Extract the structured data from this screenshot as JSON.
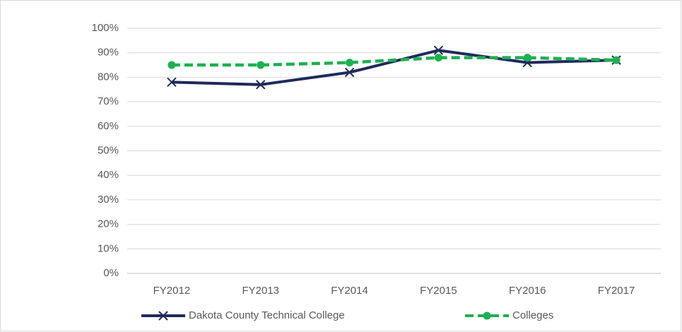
{
  "chart_data": {
    "type": "line",
    "categories": [
      "FY2012",
      "FY2013",
      "FY2014",
      "FY2015",
      "FY2016",
      "FY2017"
    ],
    "series": [
      {
        "name": "Dakota County Technical College",
        "color": "#1f2a5c",
        "values": [
          78,
          77,
          82,
          91,
          86,
          87
        ]
      },
      {
        "name": "Colleges",
        "color": "#1db050",
        "values": [
          85,
          85,
          86,
          88,
          88,
          87
        ]
      }
    ],
    "ylim": [
      0,
      100
    ],
    "yticks": [
      {
        "value": 0,
        "label": "0%"
      },
      {
        "value": 10,
        "label": "10%"
      },
      {
        "value": 20,
        "label": "20%"
      },
      {
        "value": 30,
        "label": "30%"
      },
      {
        "value": 40,
        "label": "40%"
      },
      {
        "value": 50,
        "label": "50%"
      },
      {
        "value": 60,
        "label": "60%"
      },
      {
        "value": 70,
        "label": "70%"
      },
      {
        "value": 80,
        "label": "80%"
      },
      {
        "value": 90,
        "label": "90%"
      },
      {
        "value": 100,
        "label": "100%"
      }
    ],
    "grid": true,
    "legend": "bottom"
  }
}
